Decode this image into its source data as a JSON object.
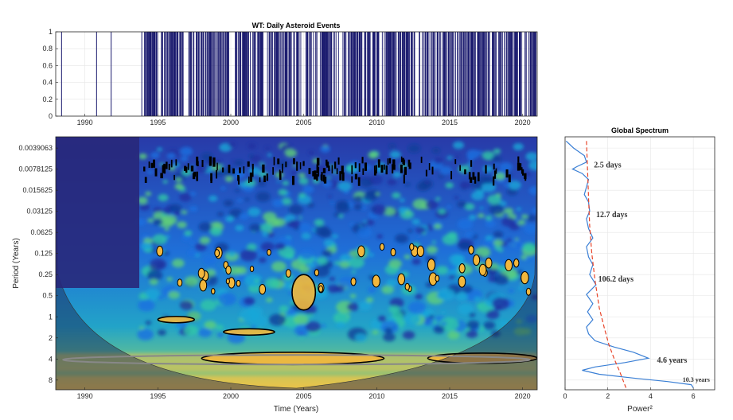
{
  "chart_data": [
    {
      "type": "bar",
      "title": "WT: Daily Asteroid Events",
      "xlim": [
        1988,
        2021
      ],
      "ylim": [
        0,
        1
      ],
      "x_ticks": [
        "1990",
        "1995",
        "2000",
        "2005",
        "2010",
        "2015",
        "2020"
      ],
      "y_ticks": [
        "0",
        "0.2",
        "0.4",
        "0.6",
        "0.8",
        "1"
      ],
      "event_value": 1,
      "bar_color": "#1a1a6e",
      "sparse_event_years": [
        1988.4,
        1990.8,
        1991.8,
        1993.9,
        1994.2
      ],
      "dense_event_range": [
        1994.0,
        2021.0
      ],
      "gap_ranges": [
        [
          1996.8,
          1997.1
        ],
        [
          1999.9,
          2000.3
        ],
        [
          2002.2,
          2002.5
        ],
        [
          2004.8,
          2005.1
        ],
        [
          2007.4,
          2007.6
        ],
        [
          2012.6,
          2012.9
        ]
      ]
    },
    {
      "type": "heatmap",
      "xlabel": "Time (Years)",
      "ylabel": "Period (Years)",
      "xlim": [
        1988,
        2021
      ],
      "x_ticks": [
        "1990",
        "1995",
        "2000",
        "2005",
        "2010",
        "2015",
        "2020"
      ],
      "y_scale": "log2",
      "y_ticks": [
        "0.0039063",
        "0.0078125",
        "0.015625",
        "0.03125",
        "0.0625",
        "0.125",
        "0.25",
        "0.5",
        "1",
        "2",
        "4",
        "8"
      ],
      "ylim": [
        0.0027,
        11
      ],
      "colormap": "parula",
      "significance_regions": [
        {
          "t_start": 1998.0,
          "t_end": 2010.5,
          "period_low": 3.2,
          "period_high": 4.8
        },
        {
          "t_start": 2013.5,
          "t_end": 2021.0,
          "period_low": 3.3,
          "period_high": 4.6
        },
        {
          "t_start": 2004.2,
          "t_end": 2005.8,
          "period_low": 0.25,
          "period_high": 0.8
        },
        {
          "t_start": 1995.0,
          "t_end": 1997.5,
          "period_low": 1.0,
          "period_high": 1.2
        },
        {
          "t_start": 1999.5,
          "t_end": 2003.0,
          "period_low": 1.5,
          "period_high": 1.8
        }
      ]
    },
    {
      "type": "line",
      "title": "Global Spectrum",
      "xlabel": "Power²",
      "xlim": [
        0,
        7
      ],
      "x_ticks": [
        "0",
        "2",
        "4",
        "6"
      ],
      "y_scale": "log2",
      "ylim": [
        0.0027,
        11
      ],
      "series": [
        {
          "style": "solid",
          "color": "#3a7fd5",
          "points": [
            [
              0.05,
              0.0031
            ],
            [
              0.4,
              0.0039
            ],
            [
              0.9,
              0.005
            ],
            [
              1.0,
              0.0062
            ],
            [
              0.55,
              0.0072
            ],
            [
              0.35,
              0.0078
            ],
            [
              0.8,
              0.009
            ],
            [
              1.1,
              0.011
            ],
            [
              1.0,
              0.014
            ],
            [
              0.9,
              0.018
            ],
            [
              1.1,
              0.023
            ],
            [
              1.15,
              0.031
            ],
            [
              1.0,
              0.04
            ],
            [
              1.1,
              0.055
            ],
            [
              1.3,
              0.075
            ],
            [
              1.0,
              0.1
            ],
            [
              1.1,
              0.14
            ],
            [
              1.3,
              0.18
            ],
            [
              1.15,
              0.25
            ],
            [
              1.45,
              0.35
            ],
            [
              1.0,
              0.48
            ],
            [
              1.3,
              0.65
            ],
            [
              1.05,
              0.85
            ],
            [
              1.3,
              1.1
            ],
            [
              1.0,
              1.4
            ],
            [
              1.1,
              1.75
            ],
            [
              1.4,
              2.2
            ],
            [
              2.3,
              2.7
            ],
            [
              3.2,
              3.2
            ],
            [
              3.9,
              3.9
            ],
            [
              2.8,
              4.5
            ],
            [
              1.4,
              5.2
            ],
            [
              0.8,
              5.8
            ],
            [
              1.6,
              6.6
            ],
            [
              3.2,
              7.5
            ],
            [
              4.8,
              8.4
            ],
            [
              5.9,
              9.3
            ],
            [
              6.0,
              10.3
            ]
          ]
        },
        {
          "style": "dashed",
          "color": "#e8452a",
          "points": [
            [
              1.0,
              0.0031
            ],
            [
              1.05,
              0.0078
            ],
            [
              1.1,
              0.02
            ],
            [
              1.15,
              0.05
            ],
            [
              1.25,
              0.125
            ],
            [
              1.4,
              0.3
            ],
            [
              1.6,
              0.75
            ],
            [
              1.85,
              1.5
            ],
            [
              2.05,
              2.5
            ],
            [
              2.3,
              4.0
            ],
            [
              2.55,
              6.0
            ],
            [
              2.85,
              10.3
            ]
          ]
        }
      ],
      "annotations": [
        {
          "text": "2.5 days",
          "period": 0.0068,
          "power": 1.35
        },
        {
          "text": "12.7 days",
          "period": 0.035,
          "power": 1.45
        },
        {
          "text": "106.2 days",
          "period": 0.29,
          "power": 1.55
        },
        {
          "text": "4.6 years",
          "period": 4.2,
          "power": 4.3
        },
        {
          "text": "10.3 years",
          "period": 7.8,
          "power": 5.5
        }
      ]
    }
  ]
}
